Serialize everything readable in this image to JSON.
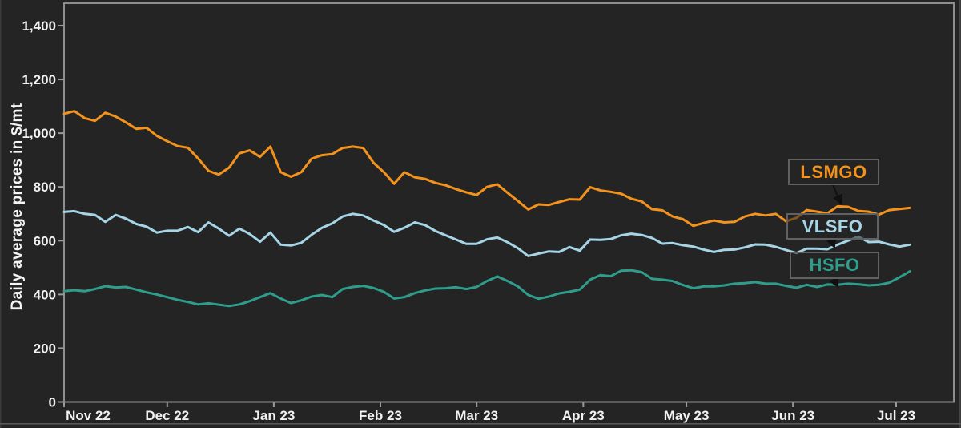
{
  "page": {
    "background_color": "#242424",
    "axis_text_color": "#f2f2f2",
    "plot_border_color": "#8e8e8e"
  },
  "chart_data": {
    "type": "line",
    "title": "",
    "xlabel": "",
    "ylabel": "Daily average prices in $/mt",
    "ylim": [
      0,
      1400
    ],
    "grid": false,
    "legend_position": "inline-annotation-boxes",
    "x_range": [
      "Nov 2022",
      "Jul 2023"
    ],
    "day_step": 3,
    "x_ticks": [
      {
        "label": "Nov 22",
        "day": 0
      },
      {
        "label": "Dec 22",
        "day": 30
      },
      {
        "label": "Jan 23",
        "day": 61
      },
      {
        "label": "Feb 23",
        "day": 92
      },
      {
        "label": "Mar 23",
        "day": 120
      },
      {
        "label": "Apr 23",
        "day": 151
      },
      {
        "label": "May 23",
        "day": 181
      },
      {
        "label": "Jun 23",
        "day": 212
      },
      {
        "label": "Jul 23",
        "day": 242
      }
    ],
    "y_ticks": [
      {
        "label": "0",
        "value": 0
      },
      {
        "label": "200",
        "value": 200
      },
      {
        "label": "400",
        "value": 400
      },
      {
        "label": "600",
        "value": 600
      },
      {
        "label": "800",
        "value": 800
      },
      {
        "label": "1,000",
        "value": 1000
      },
      {
        "label": "1,200",
        "value": 1200
      },
      {
        "label": "1,400",
        "value": 1400
      }
    ],
    "series": [
      {
        "name": "LSMGO",
        "color": "#f3921c",
        "unit": "$/mt",
        "values": [
          1072,
          1082,
          1056,
          1046,
          1076,
          1062,
          1040,
          1016,
          1020,
          990,
          970,
          952,
          946,
          906,
          860,
          846,
          872,
          925,
          936,
          912,
          950,
          855,
          838,
          855,
          905,
          918,
          922,
          945,
          950,
          945,
          890,
          855,
          812,
          855,
          836,
          830,
          815,
          806,
          792,
          780,
          770,
          800,
          810,
          778,
          748,
          716,
          735,
          733,
          744,
          754,
          753,
          799,
          787,
          782,
          775,
          756,
          746,
          717,
          713,
          690,
          680,
          655,
          666,
          675,
          668,
          670,
          690,
          700,
          694,
          700,
          672,
          685,
          714,
          708,
          702,
          728,
          726,
          711,
          708,
          697,
          714,
          718,
          722
        ]
      },
      {
        "name": "VLSFO",
        "color": "#a5d5e6",
        "unit": "$/mt",
        "values": [
          707,
          710,
          700,
          696,
          670,
          696,
          682,
          662,
          652,
          630,
          637,
          637,
          651,
          632,
          668,
          645,
          618,
          645,
          625,
          596,
          630,
          585,
          582,
          592,
          622,
          648,
          664,
          690,
          700,
          694,
          675,
          658,
          633,
          648,
          668,
          658,
          636,
          620,
          604,
          588,
          588,
          605,
          612,
          594,
          572,
          543,
          552,
          560,
          558,
          576,
          563,
          604,
          603,
          606,
          620,
          626,
          621,
          610,
          589,
          591,
          583,
          578,
          567,
          558,
          566,
          567,
          575,
          586,
          585,
          577,
          565,
          554,
          570,
          570,
          568,
          585,
          600,
          615,
          595,
          596,
          586,
          578,
          585
        ]
      },
      {
        "name": "HSFO",
        "color": "#2f9d8c",
        "unit": "$/mt",
        "values": [
          412,
          416,
          412,
          420,
          431,
          426,
          428,
          418,
          408,
          400,
          390,
          380,
          372,
          363,
          367,
          362,
          357,
          363,
          375,
          390,
          405,
          385,
          368,
          378,
          392,
          398,
          390,
          420,
          428,
          432,
          424,
          410,
          385,
          390,
          405,
          415,
          422,
          423,
          427,
          420,
          428,
          450,
          467,
          450,
          430,
          398,
          384,
          392,
          404,
          410,
          418,
          455,
          472,
          468,
          488,
          490,
          483,
          458,
          455,
          450,
          435,
          423,
          430,
          430,
          434,
          440,
          442,
          446,
          440,
          440,
          432,
          425,
          436,
          428,
          437,
          436,
          440,
          438,
          434,
          436,
          444,
          464,
          486
        ]
      }
    ],
    "annotations": [
      {
        "label": "LSMGO",
        "series": "LSMGO",
        "day": 226
      },
      {
        "label": "VLSFO",
        "series": "VLSFO",
        "day": 224
      },
      {
        "label": "HSFO",
        "series": "HSFO",
        "day": 225
      }
    ]
  }
}
